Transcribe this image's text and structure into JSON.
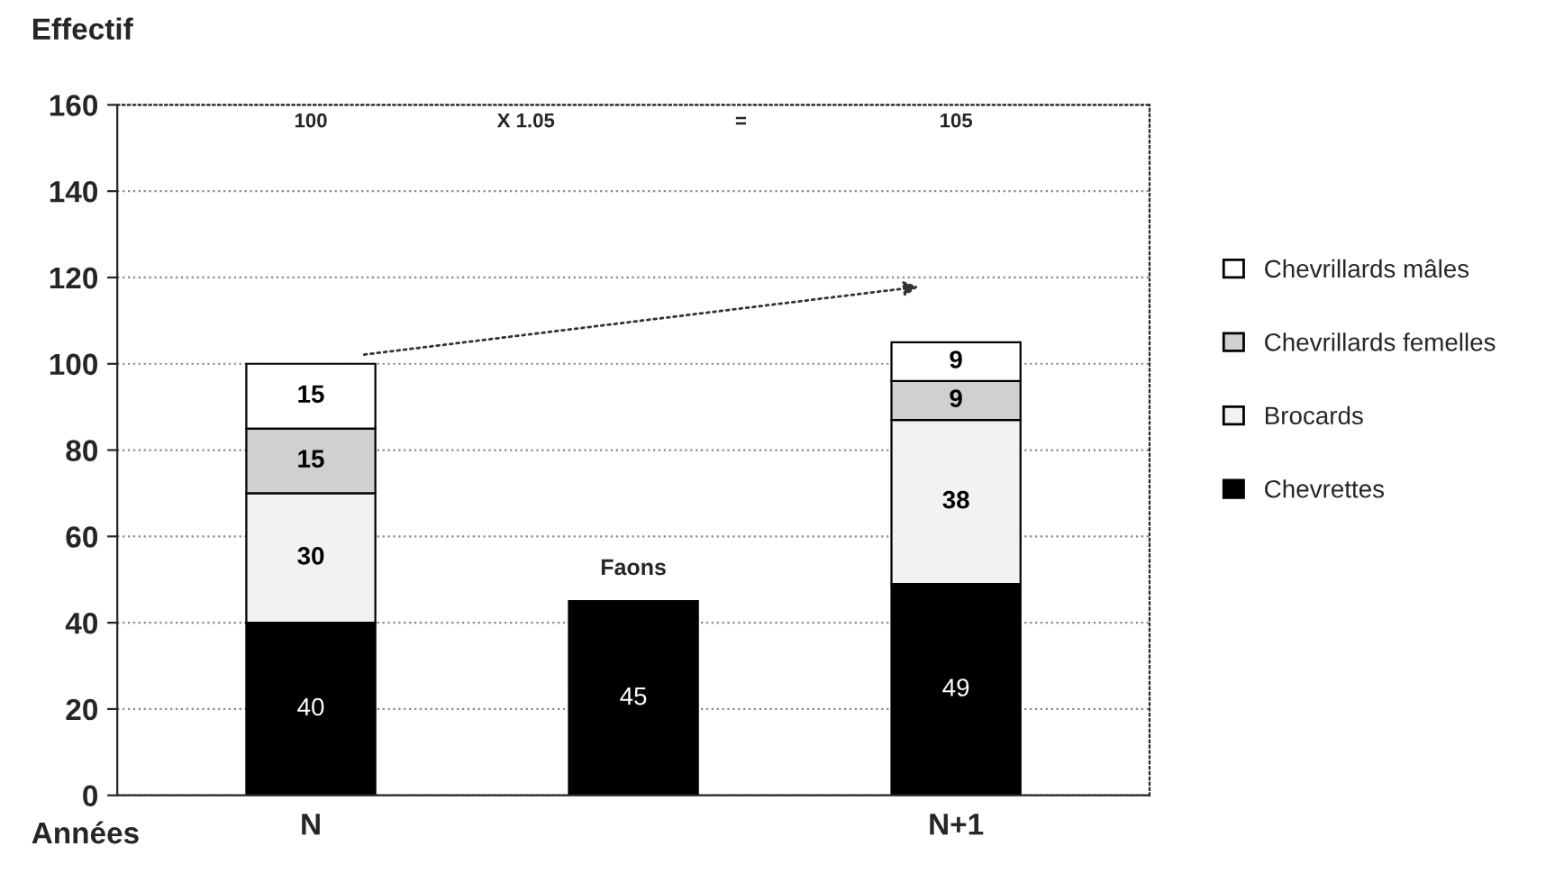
{
  "chart_data": {
    "type": "bar",
    "stacked": true,
    "ylabel": "Effectif",
    "xlabel": "Années",
    "categories": [
      "N",
      null,
      "N+1"
    ],
    "series": [
      {
        "name": "Chevrettes",
        "color": "#000000",
        "values": [
          40,
          45,
          49
        ]
      },
      {
        "name": "Brocards",
        "color": "#f2f2f2",
        "values": [
          30,
          null,
          38
        ]
      },
      {
        "name": "Chevrillards femelles",
        "color": "#d0d0d0",
        "values": [
          15,
          null,
          9
        ]
      },
      {
        "name": "Chevrillards mâles",
        "color": "#ffffff",
        "values": [
          15,
          null,
          9
        ]
      }
    ],
    "ylim": [
      0,
      160
    ],
    "yticks": [
      0,
      20,
      40,
      60,
      80,
      100,
      120,
      140,
      160
    ],
    "grid": "y",
    "legend": "right",
    "data_labels": true,
    "annotations": [
      "100",
      "X 1.05",
      "=",
      "105",
      "Faons"
    ]
  }
}
